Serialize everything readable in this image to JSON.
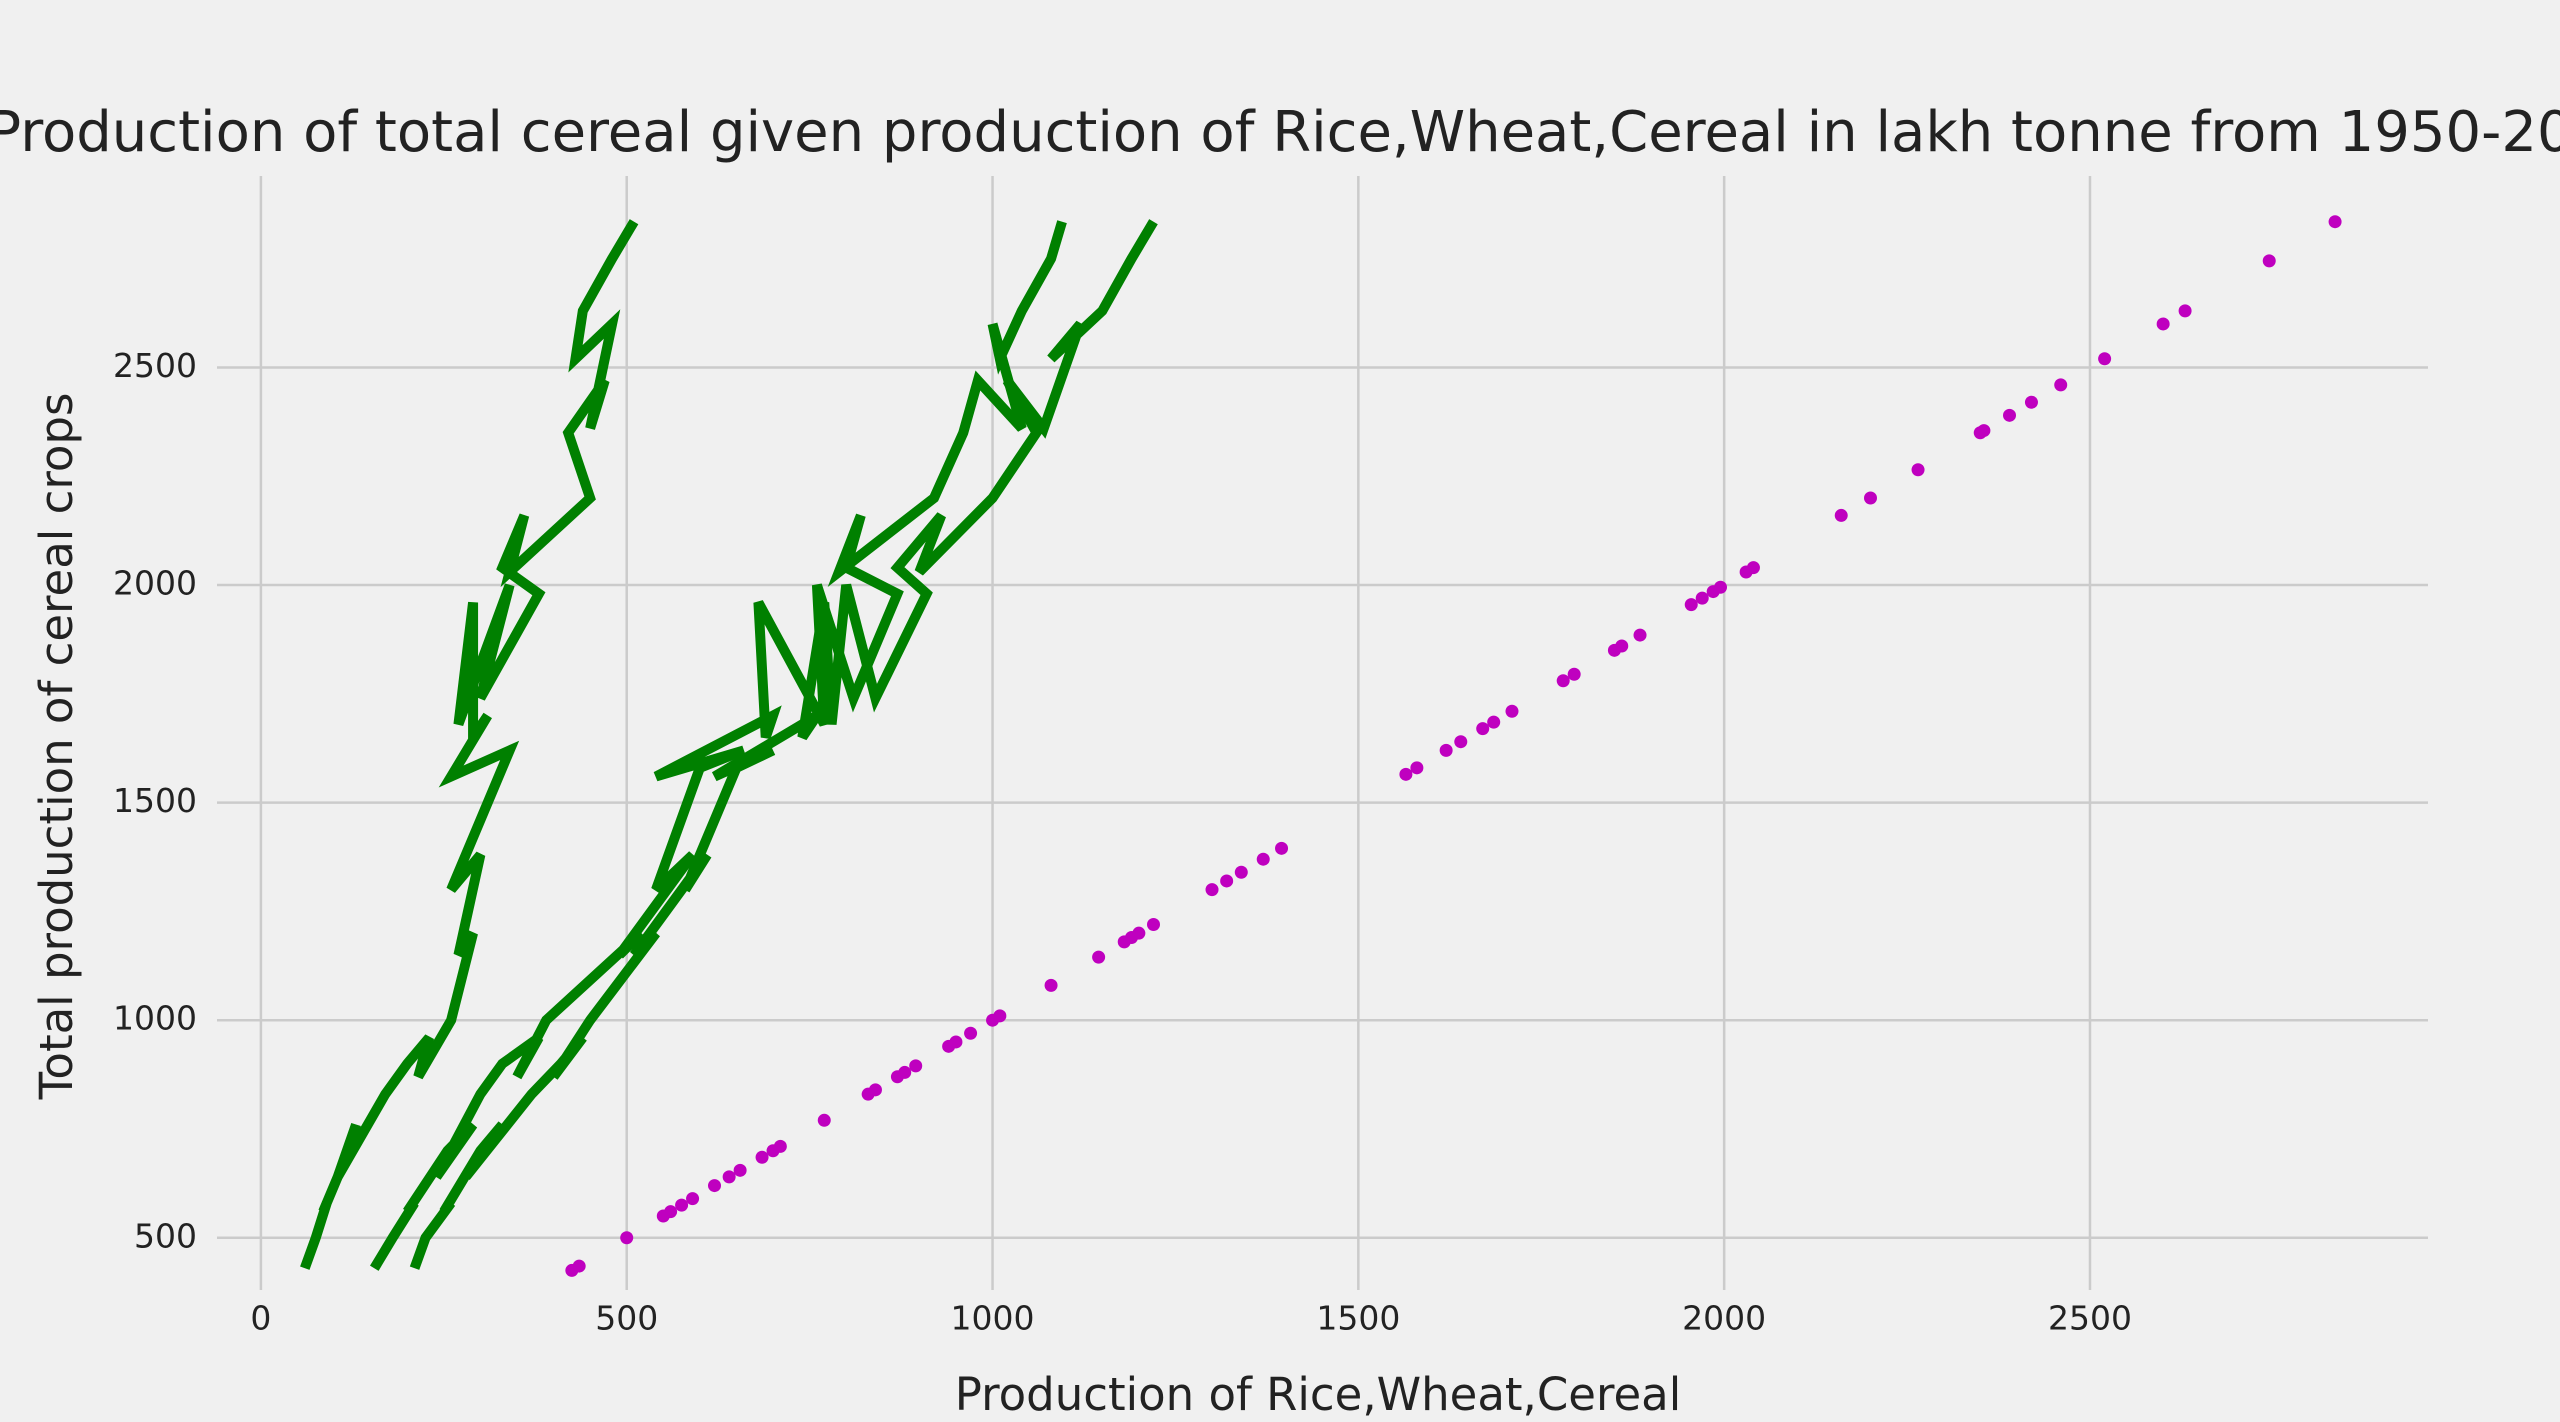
{
  "chart_data": {
    "type": "line",
    "title": "Production of total cereal given production of Rice,Wheat,Cereal in lakh tonne from 1950-20",
    "xlabel": "Production of Rice,Wheat,Cereal",
    "ylabel": "Total production of cereal crops",
    "xlim": [
      -60,
      2962
    ],
    "ylim": [
      380,
      2940
    ],
    "xticks": [
      0,
      500,
      1000,
      1500,
      2000,
      2500
    ],
    "yticks": [
      500,
      1000,
      1500,
      2000,
      2500
    ],
    "grid": true,
    "series": [
      {
        "type": "line",
        "color": "#008000",
        "x": [
          60,
          75,
          90,
          85,
          120,
          130,
          105,
          170,
          200,
          230,
          215,
          260,
          290,
          270,
          300,
          260,
          330,
          340,
          260,
          310,
          290,
          290,
          270,
          340,
          300,
          380,
          330,
          360,
          340,
          450,
          420,
          470,
          450,
          480,
          430,
          440,
          480,
          510
        ],
        "values": [
          430,
          500,
          580,
          560,
          700,
          760,
          640,
          830,
          900,
          960,
          870,
          1000,
          1200,
          1150,
          1380,
          1300,
          1580,
          1620,
          1560,
          1700,
          1650,
          1960,
          1680,
          2000,
          1740,
          1980,
          2040,
          2160,
          2030,
          2200,
          2350,
          2470,
          2360,
          2600,
          2520,
          2630,
          2750,
          2835
        ]
      },
      {
        "type": "line",
        "color": "#008000",
        "x": [
          155,
          180,
          210,
          200,
          255,
          290,
          240,
          300,
          330,
          380,
          350,
          390,
          520,
          490,
          590,
          540,
          600,
          660,
          540,
          700,
          690,
          680,
          770,
          760,
          810,
          870,
          800,
          820,
          790,
          920,
          960,
          980,
          1040,
          1000,
          1010,
          1040,
          1080,
          1095
        ],
        "values": [
          430,
          500,
          580,
          560,
          700,
          760,
          640,
          830,
          900,
          960,
          870,
          1000,
          1200,
          1150,
          1380,
          1300,
          1580,
          1620,
          1560,
          1700,
          1650,
          1960,
          1680,
          2000,
          1740,
          1980,
          2040,
          2160,
          2030,
          2200,
          2350,
          2470,
          2360,
          2600,
          2520,
          2630,
          2750,
          2835
        ]
      },
      {
        "type": "line",
        "color": "#008000",
        "x": [
          210,
          225,
          260,
          250,
          300,
          330,
          280,
          370,
          410,
          440,
          400,
          450,
          540,
          510,
          610,
          580,
          650,
          700,
          620,
          760,
          740,
          770,
          780,
          800,
          840,
          910,
          870,
          930,
          900,
          1000,
          1060,
          1020,
          1070,
          1120,
          1080,
          1150,
          1190,
          1220
        ],
        "values": [
          430,
          500,
          580,
          560,
          700,
          760,
          640,
          830,
          900,
          960,
          870,
          1000,
          1200,
          1150,
          1380,
          1300,
          1580,
          1620,
          1560,
          1700,
          1650,
          1960,
          1680,
          2000,
          1740,
          1980,
          2040,
          2160,
          2030,
          2200,
          2350,
          2470,
          2360,
          2600,
          2520,
          2630,
          2750,
          2835
        ]
      },
      {
        "type": "scatter",
        "color": "#bf00bf",
        "x": [
          425,
          435,
          500,
          550,
          560,
          575,
          590,
          620,
          640,
          655,
          685,
          700,
          710,
          770,
          830,
          840,
          870,
          880,
          895,
          940,
          950,
          970,
          1000,
          1010,
          1080,
          1145,
          1180,
          1190,
          1200,
          1220,
          1300,
          1320,
          1340,
          1370,
          1395,
          1565,
          1580,
          1620,
          1640,
          1670,
          1685,
          1710,
          1780,
          1795,
          1850,
          1860,
          1885,
          1955,
          1970,
          1985,
          1995,
          2030,
          2040,
          2160,
          2200,
          2265,
          2350,
          2355,
          2390,
          2420,
          2460,
          2520,
          2600,
          2630,
          2745,
          2835
        ],
        "values": [
          425,
          435,
          500,
          550,
          560,
          575,
          590,
          620,
          640,
          655,
          685,
          700,
          710,
          770,
          830,
          840,
          870,
          880,
          895,
          940,
          950,
          970,
          1000,
          1010,
          1080,
          1145,
          1180,
          1190,
          1200,
          1220,
          1300,
          1320,
          1340,
          1370,
          1395,
          1565,
          1580,
          1620,
          1640,
          1670,
          1685,
          1710,
          1780,
          1795,
          1850,
          1860,
          1885,
          1955,
          1970,
          1985,
          1995,
          2030,
          2040,
          2160,
          2200,
          2265,
          2350,
          2355,
          2390,
          2420,
          2460,
          2520,
          2600,
          2630,
          2745,
          2835
        ]
      }
    ]
  }
}
